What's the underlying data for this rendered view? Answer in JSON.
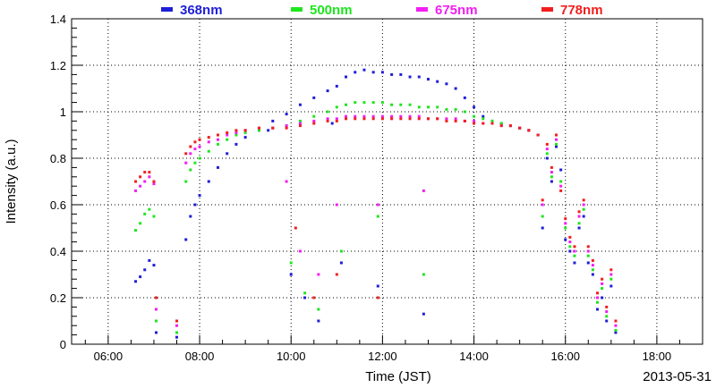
{
  "chart_data": {
    "type": "scatter",
    "xlabel": "Time (JST)",
    "ylabel": "Intensity (a.u.)",
    "date_label": "2013-05-31",
    "xlim": [
      5.2,
      19.0
    ],
    "ylim": [
      0,
      1.4
    ],
    "x_ticks": [
      {
        "value": 6,
        "label": "06:00"
      },
      {
        "value": 8,
        "label": "08:00"
      },
      {
        "value": 10,
        "label": "10:00"
      },
      {
        "value": 12,
        "label": "12:00"
      },
      {
        "value": 14,
        "label": "14:00"
      },
      {
        "value": 16,
        "label": "16:00"
      },
      {
        "value": 18,
        "label": "18:00"
      }
    ],
    "y_ticks": [
      {
        "value": 0,
        "label": "0"
      },
      {
        "value": 0.2,
        "label": "0.2"
      },
      {
        "value": 0.4,
        "label": "0.4"
      },
      {
        "value": 0.6,
        "label": "0.6"
      },
      {
        "value": 0.8,
        "label": "0.8"
      },
      {
        "value": 1.0,
        "label": "1"
      },
      {
        "value": 1.2,
        "label": "1.2"
      },
      {
        "value": 1.4,
        "label": "1.4"
      }
    ],
    "grid": true,
    "legend_position": "top",
    "series": [
      {
        "name": "368nm",
        "color": "#1f1fd6",
        "points": [
          [
            6.6,
            0.27
          ],
          [
            6.7,
            0.29
          ],
          [
            6.8,
            0.32
          ],
          [
            6.9,
            0.36
          ],
          [
            7.0,
            0.34
          ],
          [
            7.05,
            0.05
          ],
          [
            7.5,
            0.03
          ],
          [
            7.7,
            0.45
          ],
          [
            7.8,
            0.55
          ],
          [
            7.9,
            0.6
          ],
          [
            8.0,
            0.64
          ],
          [
            8.2,
            0.7
          ],
          [
            8.4,
            0.76
          ],
          [
            8.6,
            0.82
          ],
          [
            8.8,
            0.86
          ],
          [
            9.0,
            0.89
          ],
          [
            9.3,
            0.92
          ],
          [
            9.6,
            0.96
          ],
          [
            9.9,
            0.99
          ],
          [
            10.2,
            1.03
          ],
          [
            10.5,
            1.06
          ],
          [
            10.8,
            1.09
          ],
          [
            11.0,
            1.11
          ],
          [
            11.2,
            1.15
          ],
          [
            11.4,
            1.17
          ],
          [
            11.6,
            1.18
          ],
          [
            11.8,
            1.17
          ],
          [
            12.0,
            1.17
          ],
          [
            12.2,
            1.16
          ],
          [
            12.4,
            1.16
          ],
          [
            12.6,
            1.15
          ],
          [
            12.8,
            1.15
          ],
          [
            13.0,
            1.14
          ],
          [
            13.2,
            1.13
          ],
          [
            13.4,
            1.12
          ],
          [
            13.6,
            1.1
          ],
          [
            13.8,
            1.06
          ],
          [
            14.0,
            1.02
          ],
          [
            14.2,
            0.98
          ],
          [
            14.4,
            0.96
          ],
          [
            14.6,
            0.95
          ],
          [
            14.8,
            0.94
          ],
          [
            15.0,
            0.93
          ],
          [
            15.2,
            0.92
          ],
          [
            15.4,
            0.9
          ],
          [
            15.5,
            0.5
          ],
          [
            15.6,
            0.8
          ],
          [
            15.7,
            0.7
          ],
          [
            15.8,
            0.85
          ],
          [
            15.9,
            0.75
          ],
          [
            16.0,
            0.45
          ],
          [
            16.1,
            0.4
          ],
          [
            16.2,
            0.35
          ],
          [
            16.3,
            0.5
          ],
          [
            16.4,
            0.55
          ],
          [
            16.5,
            0.35
          ],
          [
            16.6,
            0.3
          ],
          [
            16.7,
            0.15
          ],
          [
            16.8,
            0.2
          ],
          [
            16.9,
            0.1
          ],
          [
            17.0,
            0.25
          ],
          [
            17.1,
            0.05
          ],
          [
            10.0,
            0.3
          ],
          [
            10.3,
            0.2
          ],
          [
            10.6,
            0.1
          ],
          [
            11.1,
            0.35
          ],
          [
            11.9,
            0.25
          ],
          [
            12.9,
            0.13
          ],
          [
            9.5,
            0.92
          ],
          [
            10.9,
            0.95
          ]
        ]
      },
      {
        "name": "500nm",
        "color": "#1ee61e",
        "points": [
          [
            6.6,
            0.49
          ],
          [
            6.7,
            0.52
          ],
          [
            6.8,
            0.56
          ],
          [
            6.9,
            0.58
          ],
          [
            7.0,
            0.55
          ],
          [
            7.05,
            0.1
          ],
          [
            7.5,
            0.05
          ],
          [
            7.7,
            0.7
          ],
          [
            7.8,
            0.75
          ],
          [
            7.9,
            0.78
          ],
          [
            8.0,
            0.8
          ],
          [
            8.2,
            0.83
          ],
          [
            8.4,
            0.86
          ],
          [
            8.6,
            0.88
          ],
          [
            8.8,
            0.9
          ],
          [
            9.0,
            0.91
          ],
          [
            9.3,
            0.92
          ],
          [
            9.6,
            0.93
          ],
          [
            9.9,
            0.94
          ],
          [
            10.2,
            0.96
          ],
          [
            10.5,
            0.98
          ],
          [
            10.8,
            1.0
          ],
          [
            11.0,
            1.02
          ],
          [
            11.2,
            1.03
          ],
          [
            11.4,
            1.04
          ],
          [
            11.6,
            1.04
          ],
          [
            11.8,
            1.04
          ],
          [
            12.0,
            1.04
          ],
          [
            12.2,
            1.03
          ],
          [
            12.4,
            1.03
          ],
          [
            12.6,
            1.03
          ],
          [
            12.8,
            1.02
          ],
          [
            13.0,
            1.02
          ],
          [
            13.2,
            1.02
          ],
          [
            13.4,
            1.01
          ],
          [
            13.6,
            1.01
          ],
          [
            13.8,
            1.0
          ],
          [
            14.0,
            0.98
          ],
          [
            14.2,
            0.97
          ],
          [
            14.4,
            0.96
          ],
          [
            14.6,
            0.95
          ],
          [
            14.8,
            0.94
          ],
          [
            15.0,
            0.93
          ],
          [
            15.2,
            0.92
          ],
          [
            15.4,
            0.9
          ],
          [
            15.5,
            0.55
          ],
          [
            15.6,
            0.82
          ],
          [
            15.7,
            0.72
          ],
          [
            15.8,
            0.86
          ],
          [
            15.9,
            0.7
          ],
          [
            16.0,
            0.5
          ],
          [
            16.1,
            0.42
          ],
          [
            16.2,
            0.38
          ],
          [
            16.3,
            0.52
          ],
          [
            16.4,
            0.58
          ],
          [
            16.5,
            0.38
          ],
          [
            16.6,
            0.32
          ],
          [
            16.7,
            0.18
          ],
          [
            16.8,
            0.24
          ],
          [
            16.9,
            0.12
          ],
          [
            17.0,
            0.28
          ],
          [
            17.1,
            0.06
          ],
          [
            10.0,
            0.35
          ],
          [
            10.3,
            0.22
          ],
          [
            10.6,
            0.15
          ],
          [
            11.1,
            0.4
          ],
          [
            11.9,
            0.55
          ],
          [
            12.9,
            0.3
          ]
        ]
      },
      {
        "name": "675nm",
        "color": "#f21ef2",
        "points": [
          [
            6.6,
            0.66
          ],
          [
            6.7,
            0.68
          ],
          [
            6.8,
            0.7
          ],
          [
            6.9,
            0.72
          ],
          [
            7.0,
            0.69
          ],
          [
            7.05,
            0.15
          ],
          [
            7.5,
            0.08
          ],
          [
            7.7,
            0.78
          ],
          [
            7.8,
            0.82
          ],
          [
            7.9,
            0.84
          ],
          [
            8.0,
            0.85
          ],
          [
            8.2,
            0.87
          ],
          [
            8.4,
            0.88
          ],
          [
            8.6,
            0.9
          ],
          [
            8.8,
            0.91
          ],
          [
            9.0,
            0.92
          ],
          [
            9.3,
            0.93
          ],
          [
            9.6,
            0.93
          ],
          [
            9.9,
            0.94
          ],
          [
            10.2,
            0.95
          ],
          [
            10.5,
            0.96
          ],
          [
            10.8,
            0.97
          ],
          [
            11.0,
            0.97
          ],
          [
            11.2,
            0.98
          ],
          [
            11.4,
            0.98
          ],
          [
            11.6,
            0.98
          ],
          [
            11.8,
            0.98
          ],
          [
            12.0,
            0.98
          ],
          [
            12.2,
            0.98
          ],
          [
            12.4,
            0.98
          ],
          [
            12.6,
            0.98
          ],
          [
            12.8,
            0.98
          ],
          [
            13.0,
            0.97
          ],
          [
            13.2,
            0.97
          ],
          [
            13.4,
            0.97
          ],
          [
            13.6,
            0.97
          ],
          [
            13.8,
            0.96
          ],
          [
            14.0,
            0.96
          ],
          [
            14.2,
            0.95
          ],
          [
            14.4,
            0.95
          ],
          [
            14.6,
            0.94
          ],
          [
            14.8,
            0.94
          ],
          [
            15.0,
            0.93
          ],
          [
            15.2,
            0.92
          ],
          [
            15.4,
            0.9
          ],
          [
            15.5,
            0.6
          ],
          [
            15.6,
            0.84
          ],
          [
            15.7,
            0.74
          ],
          [
            15.8,
            0.88
          ],
          [
            15.9,
            0.68
          ],
          [
            16.0,
            0.52
          ],
          [
            16.1,
            0.44
          ],
          [
            16.2,
            0.4
          ],
          [
            16.3,
            0.55
          ],
          [
            16.4,
            0.6
          ],
          [
            16.5,
            0.4
          ],
          [
            16.6,
            0.34
          ],
          [
            16.7,
            0.2
          ],
          [
            16.8,
            0.26
          ],
          [
            16.9,
            0.14
          ],
          [
            17.0,
            0.3
          ],
          [
            17.1,
            0.08
          ],
          [
            9.9,
            0.7
          ],
          [
            10.2,
            0.4
          ],
          [
            10.6,
            0.3
          ],
          [
            11.0,
            0.6
          ],
          [
            11.9,
            0.6
          ],
          [
            12.9,
            0.66
          ]
        ]
      },
      {
        "name": "778nm",
        "color": "#f21e1e",
        "points": [
          [
            6.6,
            0.7
          ],
          [
            6.7,
            0.72
          ],
          [
            6.8,
            0.74
          ],
          [
            6.9,
            0.74
          ],
          [
            7.0,
            0.7
          ],
          [
            7.05,
            0.2
          ],
          [
            7.5,
            0.1
          ],
          [
            7.7,
            0.82
          ],
          [
            7.8,
            0.85
          ],
          [
            7.9,
            0.87
          ],
          [
            8.0,
            0.88
          ],
          [
            8.2,
            0.89
          ],
          [
            8.4,
            0.9
          ],
          [
            8.6,
            0.91
          ],
          [
            8.8,
            0.92
          ],
          [
            9.0,
            0.92
          ],
          [
            9.3,
            0.93
          ],
          [
            9.6,
            0.93
          ],
          [
            9.9,
            0.93
          ],
          [
            10.2,
            0.94
          ],
          [
            10.5,
            0.95
          ],
          [
            10.8,
            0.96
          ],
          [
            11.0,
            0.96
          ],
          [
            11.2,
            0.97
          ],
          [
            11.4,
            0.97
          ],
          [
            11.6,
            0.97
          ],
          [
            11.8,
            0.97
          ],
          [
            12.0,
            0.97
          ],
          [
            12.2,
            0.97
          ],
          [
            12.4,
            0.97
          ],
          [
            12.6,
            0.97
          ],
          [
            12.8,
            0.97
          ],
          [
            13.0,
            0.97
          ],
          [
            13.2,
            0.97
          ],
          [
            13.4,
            0.96
          ],
          [
            13.6,
            0.96
          ],
          [
            13.8,
            0.96
          ],
          [
            14.0,
            0.95
          ],
          [
            14.2,
            0.95
          ],
          [
            14.4,
            0.95
          ],
          [
            14.6,
            0.94
          ],
          [
            14.8,
            0.94
          ],
          [
            15.0,
            0.93
          ],
          [
            15.2,
            0.92
          ],
          [
            15.4,
            0.9
          ],
          [
            15.5,
            0.62
          ],
          [
            15.6,
            0.86
          ],
          [
            15.7,
            0.76
          ],
          [
            15.8,
            0.9
          ],
          [
            15.9,
            0.66
          ],
          [
            16.0,
            0.54
          ],
          [
            16.1,
            0.46
          ],
          [
            16.2,
            0.42
          ],
          [
            16.3,
            0.57
          ],
          [
            16.4,
            0.62
          ],
          [
            16.5,
            0.42
          ],
          [
            16.6,
            0.36
          ],
          [
            16.7,
            0.22
          ],
          [
            16.8,
            0.28
          ],
          [
            16.9,
            0.16
          ],
          [
            17.0,
            0.32
          ],
          [
            17.1,
            0.1
          ],
          [
            10.1,
            0.5
          ],
          [
            10.5,
            0.2
          ],
          [
            11.0,
            0.3
          ],
          [
            11.9,
            0.2
          ]
        ]
      }
    ]
  }
}
